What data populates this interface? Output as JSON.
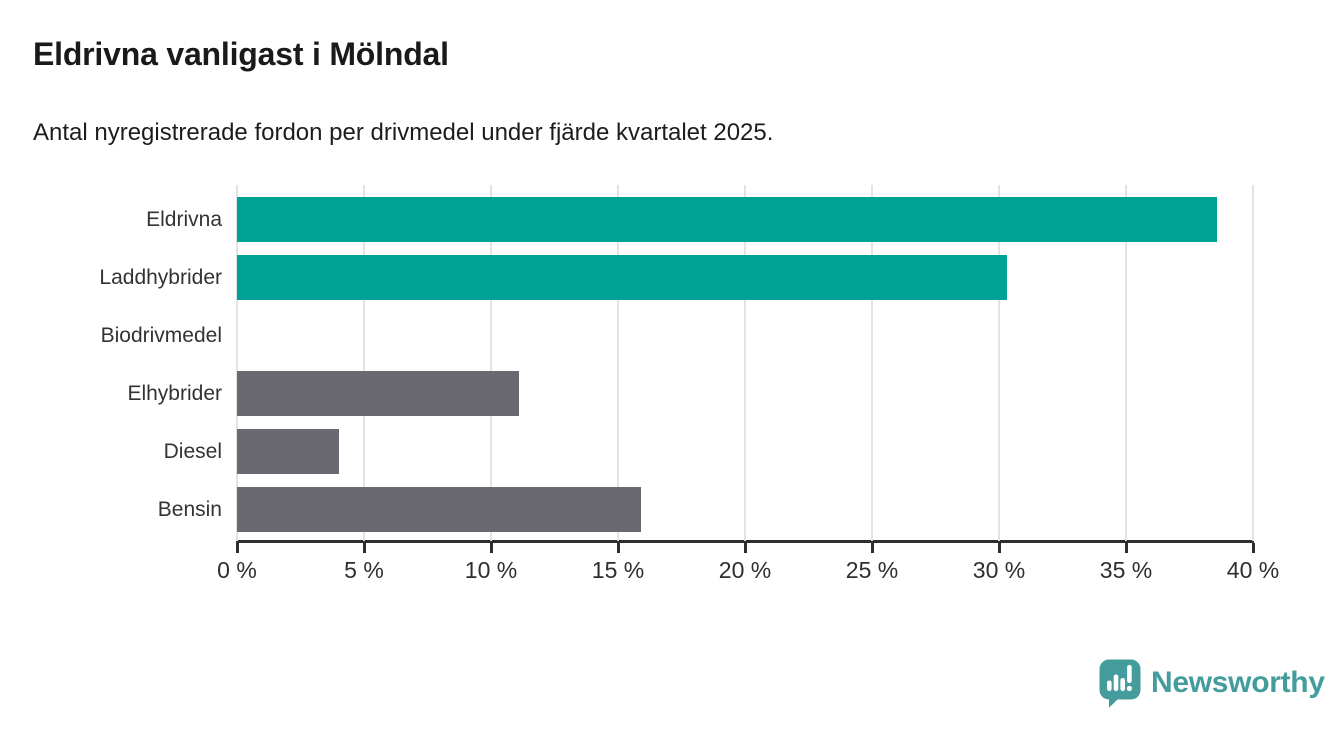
{
  "header": {
    "title": "Eldrivna vanligast i Mölndal",
    "subtitle": "Antal nyregistrerade fordon per drivmedel under fjärde kvartalet 2025."
  },
  "chart_data": {
    "type": "bar",
    "orientation": "horizontal",
    "title": "Eldrivna vanligast i Mölndal",
    "subtitle": "Antal nyregistrerade fordon per drivmedel under fjärde kvartalet 2025.",
    "categories": [
      "Eldrivna",
      "Laddhybrider",
      "Biodrivmedel",
      "Elhybrider",
      "Diesel",
      "Bensin"
    ],
    "values": [
      38.6,
      30.3,
      0,
      11.1,
      4.0,
      15.9
    ],
    "unit": "%",
    "xlim": [
      0,
      40
    ],
    "x_ticks": [
      0,
      5,
      10,
      15,
      20,
      25,
      30,
      35,
      40
    ],
    "x_tick_format": "{v} %",
    "grid": true,
    "legend": "none",
    "bar_colors": [
      "#00a296",
      "#00a296",
      "#6a6870",
      "#6a6870",
      "#6a6870",
      "#6a6870"
    ],
    "highlight_color": "#00a296",
    "default_color": "#6a6870",
    "gridline_color": "#e3e3e3",
    "axis_color": "#2e2e2e"
  },
  "footer": {
    "brand": "Newsworthy",
    "brand_color": "#449c9c",
    "logo_icon": "newsworthy-speech-bubble-bar-chart-icon"
  }
}
